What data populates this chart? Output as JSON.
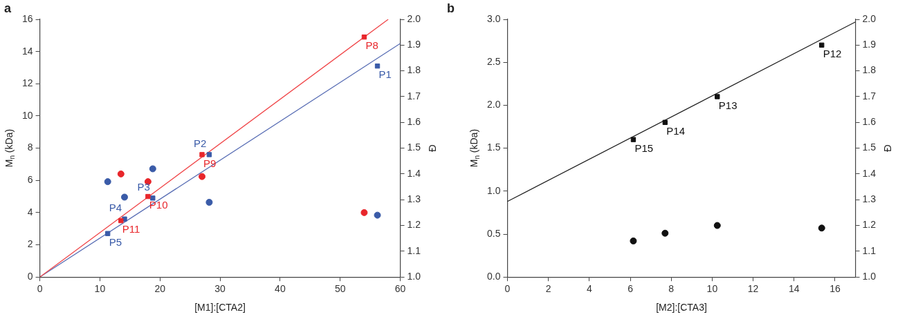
{
  "chart_data": [
    {
      "type": "scatter",
      "title": "a",
      "xlabel": "[M1]:[CTA2]",
      "ylabel": "M$_{n}$ (kDa)",
      "y2label": "Đ",
      "xlim": [
        0,
        60
      ],
      "xticks": [
        0,
        10,
        20,
        30,
        40,
        50,
        60
      ],
      "ylim": [
        0,
        16
      ],
      "yticks": [
        0,
        2,
        4,
        6,
        8,
        10,
        12,
        14,
        16
      ],
      "y2lim": [
        1,
        2
      ],
      "y2ticks": [
        {
          "value": 1,
          "label": "1.0"
        },
        {
          "value": 1.1,
          "label": "1.1"
        },
        {
          "value": 1.2,
          "label": "1.2"
        },
        {
          "value": 1.3,
          "label": "1.3"
        },
        {
          "value": 1.4,
          "label": "1.4"
        },
        {
          "value": 1.5,
          "label": "1.5"
        },
        {
          "value": 1.6,
          "label": "1.6"
        },
        {
          "value": 1.7,
          "label": "1.7"
        },
        {
          "value": 1.8,
          "label": "1.8"
        },
        {
          "value": 1.9,
          "label": "1.9"
        },
        {
          "value": 2,
          "label": "2.0"
        }
      ],
      "grid": false,
      "series": [
        {
          "marker": "square",
          "color": "#e8262b",
          "x": [
            54,
            27,
            18,
            13.5
          ],
          "values": [
            14.9,
            7.6,
            5.0,
            3.5
          ],
          "value_labels": [
            "P8",
            "P9",
            "P10",
            "P11"
          ]
        },
        {
          "marker": "square",
          "color": "#3a5ba8",
          "x": [
            56.2,
            28.2,
            18.8,
            14.1,
            11.3
          ],
          "values": [
            13.1,
            7.6,
            4.9,
            3.6,
            2.7
          ],
          "value_labels": [
            "P1",
            "P2",
            "P3",
            "P4",
            "P5"
          ]
        },
        {
          "marker": "circle",
          "color": "#e8262b",
          "axis": "y2",
          "x": [
            13.5,
            18,
            27,
            54
          ],
          "values": [
            1.4,
            1.37,
            1.39,
            1.25
          ]
        },
        {
          "marker": "circle",
          "color": "#3a5ba8",
          "axis": "y2",
          "x": [
            11.3,
            14.1,
            18.8,
            28.2,
            56.2
          ],
          "values": [
            1.37,
            1.31,
            1.42,
            1.29,
            1.24
          ]
        },
        {
          "type": "line",
          "color": "#f0474a",
          "x": [
            0,
            58
          ],
          "values": [
            0,
            16
          ]
        },
        {
          "type": "line",
          "color": "#5a6fb5",
          "x": [
            0,
            60
          ],
          "values": [
            0,
            14.5
          ]
        }
      ]
    },
    {
      "type": "scatter",
      "title": "b",
      "xlabel": "[M2]:[CTA3]",
      "ylabel": "M$_{n}$ (kDa)",
      "y2label": "Đ",
      "xlim": [
        0,
        17
      ],
      "xticks": [
        0,
        2,
        4,
        6,
        8,
        10,
        12,
        14,
        16
      ],
      "ylim": [
        0,
        3
      ],
      "yticks": [
        {
          "value": 0,
          "label": "0.0"
        },
        {
          "value": 0.5,
          "label": "0.5"
        },
        {
          "value": 1,
          "label": "1.0"
        },
        {
          "value": 1.5,
          "label": "1.5"
        },
        {
          "value": 2,
          "label": "2.0"
        },
        {
          "value": 2.5,
          "label": "2.5"
        },
        {
          "value": 3,
          "label": "3.0"
        }
      ],
      "y2lim": [
        1,
        2
      ],
      "y2ticks": [
        {
          "value": 1,
          "label": "1.0"
        },
        {
          "value": 1.1,
          "label": "1.1"
        },
        {
          "value": 1.2,
          "label": "1.2"
        },
        {
          "value": 1.3,
          "label": "1.3"
        },
        {
          "value": 1.4,
          "label": "1.4"
        },
        {
          "value": 1.5,
          "label": "1.5"
        },
        {
          "value": 1.6,
          "label": "1.6"
        },
        {
          "value": 1.7,
          "label": "1.7"
        },
        {
          "value": 1.8,
          "label": "1.8"
        },
        {
          "value": 1.9,
          "label": "1.9"
        },
        {
          "value": 2,
          "label": "2.0"
        }
      ],
      "grid": false,
      "series": [
        {
          "marker": "square",
          "color": "#111111",
          "x": [
            15.35,
            10.25,
            7.7,
            6.15
          ],
          "values": [
            2.7,
            2.1,
            1.8,
            1.6
          ],
          "value_labels": [
            "P12",
            "P13",
            "P14",
            "P15"
          ]
        },
        {
          "marker": "circle",
          "color": "#111111",
          "axis": "y2",
          "x": [
            6.15,
            7.7,
            10.25,
            15.35
          ],
          "values": [
            1.14,
            1.17,
            1.2,
            1.19
          ]
        },
        {
          "type": "line",
          "color": "#222222",
          "x": [
            0,
            17
          ],
          "values": [
            0.88,
            2.97
          ]
        }
      ]
    }
  ]
}
